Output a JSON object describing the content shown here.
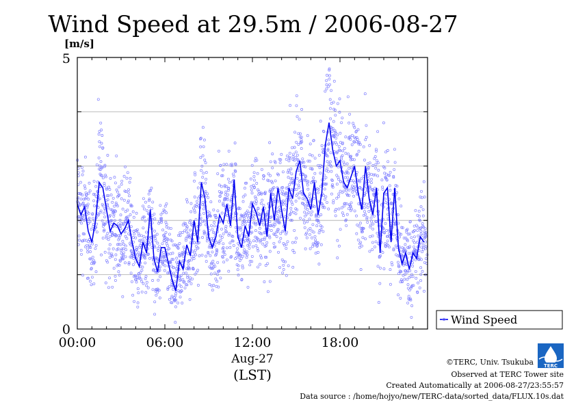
{
  "chart_data": {
    "type": "line",
    "title": "Wind Speed at 29.5m / 2006-08-27",
    "ylabel": "[m/s]",
    "ylim": [
      0,
      5
    ],
    "yticks": [
      "0",
      "5"
    ],
    "xlim": [
      0,
      24
    ],
    "xtick_labels": [
      "00:00",
      "06:00",
      "12:00",
      "18:00"
    ],
    "xtick_values": [
      0,
      6,
      12,
      18
    ],
    "date_label": "Aug-27",
    "xlabel": "(LST)",
    "gridlines_y": [
      1,
      2,
      3,
      4
    ],
    "legend": "Wind Speed",
    "legend_position": "right",
    "line_color": "#0000ee",
    "scatter_color": "#8080ff",
    "series": [
      {
        "name": "Wind Speed",
        "x": [
          0.0,
          0.25,
          0.5,
          0.75,
          1.0,
          1.25,
          1.5,
          1.75,
          2.0,
          2.25,
          2.5,
          2.75,
          3.0,
          3.25,
          3.5,
          3.75,
          4.0,
          4.25,
          4.5,
          4.75,
          5.0,
          5.25,
          5.5,
          5.75,
          6.0,
          6.25,
          6.5,
          6.75,
          7.0,
          7.25,
          7.5,
          7.75,
          8.0,
          8.25,
          8.5,
          8.75,
          9.0,
          9.25,
          9.5,
          9.75,
          10.0,
          10.25,
          10.5,
          10.75,
          11.0,
          11.25,
          11.5,
          11.75,
          12.0,
          12.25,
          12.5,
          12.75,
          13.0,
          13.25,
          13.5,
          13.75,
          14.0,
          14.25,
          14.5,
          14.75,
          15.0,
          15.25,
          15.5,
          15.75,
          16.0,
          16.25,
          16.5,
          16.75,
          17.0,
          17.25,
          17.5,
          17.75,
          18.0,
          18.25,
          18.5,
          18.75,
          19.0,
          19.25,
          19.5,
          19.75,
          20.0,
          20.25,
          20.5,
          20.75,
          21.0,
          21.25,
          21.5,
          21.75,
          22.0,
          22.25,
          22.5,
          22.75,
          23.0,
          23.25,
          23.5,
          23.75
        ],
        "values": [
          2.3,
          2.1,
          2.25,
          1.8,
          1.6,
          2.0,
          2.7,
          2.6,
          2.2,
          1.8,
          1.95,
          1.9,
          1.75,
          1.85,
          2.0,
          1.6,
          1.3,
          1.15,
          1.6,
          1.4,
          2.2,
          1.3,
          1.05,
          1.5,
          1.5,
          1.2,
          0.9,
          0.7,
          1.25,
          1.1,
          1.55,
          1.35,
          2.0,
          1.6,
          2.7,
          2.4,
          1.7,
          1.5,
          1.7,
          2.1,
          1.95,
          2.3,
          1.9,
          2.75,
          1.7,
          1.5,
          1.9,
          1.7,
          2.3,
          2.15,
          1.9,
          2.25,
          1.7,
          2.5,
          2.0,
          2.6,
          2.2,
          1.8,
          2.6,
          2.4,
          2.9,
          3.1,
          2.5,
          2.4,
          2.2,
          2.7,
          2.1,
          2.5,
          3.4,
          3.8,
          3.3,
          3.0,
          3.1,
          2.7,
          2.6,
          2.8,
          3.0,
          2.5,
          2.2,
          3.0,
          2.4,
          2.1,
          2.6,
          1.4,
          2.5,
          2.6,
          1.6,
          2.6,
          1.5,
          1.2,
          1.4,
          1.1,
          1.4,
          1.3,
          1.7,
          1.6
        ]
      }
    ]
  },
  "footer": {
    "copyright": "©TERC, Univ. Tsukuba",
    "observed": "Observed at TERC Tower site",
    "created": "Created Automatically at 2006-08-27/23:55:57",
    "source": "Data source : /home/hojyo/new/TERC-data/sorted_data/FLUX.10s.dat"
  },
  "logo": {
    "text": "TERC"
  }
}
